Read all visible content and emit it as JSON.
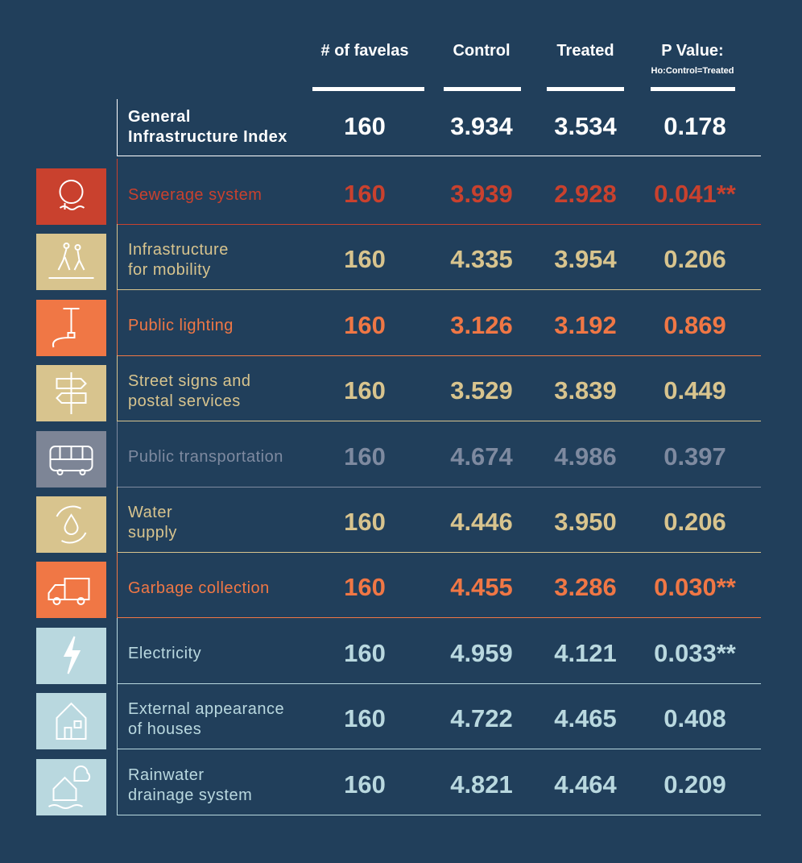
{
  "header": {
    "columns": [
      "# of favelas",
      "Control",
      "Treated",
      "P Value:"
    ],
    "pvalue_note": "Ho:Control=Treated"
  },
  "table": {
    "rows": [
      {
        "label": [
          "General",
          "Infrastructure Index"
        ],
        "values": [
          "160",
          "3.934",
          "3.534",
          "0.178"
        ],
        "color": "#ffffff"
      },
      {
        "label": [
          "Sewerage system"
        ],
        "values": [
          "160",
          "3.939",
          "2.928",
          "0.041**"
        ],
        "color": "#c9412e"
      },
      {
        "label": [
          "Infrastructure",
          "for mobility"
        ],
        "values": [
          "160",
          "4.335",
          "3.954",
          "0.206"
        ],
        "color": "#d8c48e"
      },
      {
        "label": [
          "Public lighting"
        ],
        "values": [
          "160",
          "3.126",
          "3.192",
          "0.869"
        ],
        "color": "#f07745"
      },
      {
        "label": [
          "Street signs and",
          "postal services"
        ],
        "values": [
          "160",
          "3.529",
          "3.839",
          "0.449"
        ],
        "color": "#d8c48e"
      },
      {
        "label": [
          "Public transportation"
        ],
        "values": [
          "160",
          "4.674",
          "4.986",
          "0.397"
        ],
        "color": "#7e8aa0"
      },
      {
        "label": [
          "Water",
          "supply"
        ],
        "values": [
          "160",
          "4.446",
          "3.950",
          "0.206"
        ],
        "color": "#d8c48e"
      },
      {
        "label": [
          "Garbage collection"
        ],
        "values": [
          "160",
          "4.455",
          "3.286",
          "0.030**"
        ],
        "color": "#f07745"
      },
      {
        "label": [
          "Electricity"
        ],
        "values": [
          "160",
          "4.959",
          "4.121",
          "0.033**"
        ],
        "color": "#b9d8df"
      },
      {
        "label": [
          "External appearance",
          "of houses"
        ],
        "values": [
          "160",
          "4.722",
          "4.465",
          "0.408"
        ],
        "color": "#b9d8df"
      },
      {
        "label": [
          "Rainwater",
          "drainage system"
        ],
        "values": [
          "160",
          "4.821",
          "4.464",
          "0.209"
        ],
        "color": "#b9d8df"
      }
    ]
  }
}
